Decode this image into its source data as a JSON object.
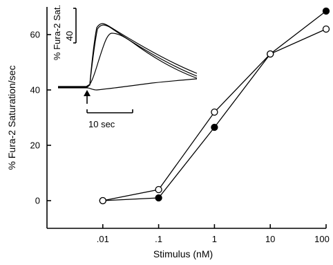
{
  "chart_data": {
    "type": "scatter",
    "xlabel": "Stimulus (nM)",
    "ylabel": "% Fura-2 Saturation/sec",
    "x_scale": "log",
    "xlim": [
      0.001,
      100
    ],
    "ylim": [
      -10,
      70
    ],
    "x_ticks": [
      0.01,
      0.1,
      1,
      10,
      100
    ],
    "x_tick_labels": [
      ".01",
      ".1",
      "1",
      "10",
      "100"
    ],
    "y_ticks": [
      0,
      20,
      40,
      60
    ],
    "y_tick_labels": [
      "0",
      "20",
      "40",
      "60"
    ],
    "series": [
      {
        "marker": "filled-circle",
        "x": [
          0.01,
          0.1,
          1,
          10,
          100
        ],
        "y": [
          0,
          1,
          26.5,
          53,
          68.5
        ]
      },
      {
        "marker": "open-circle",
        "x": [
          0.01,
          0.1,
          1,
          10,
          100
        ],
        "y": [
          0,
          4,
          32,
          53,
          62
        ]
      }
    ],
    "inset": {
      "ylabel": "% Fura-2 Sat.",
      "y_scale_bar_label": "40",
      "time_scale_bar_label": "10 sec",
      "stimulus_marker": "arrow"
    }
  }
}
